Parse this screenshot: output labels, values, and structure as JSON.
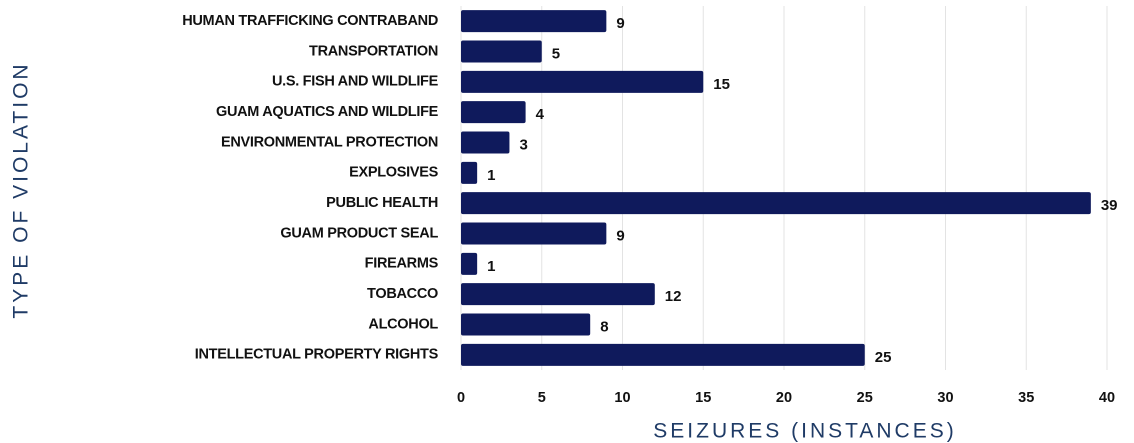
{
  "chart_data": {
    "type": "bar",
    "orientation": "horizontal",
    "xlabel": "SEIZURES (INSTANCES)",
    "ylabel": "TYPE OF VIOLATION",
    "categories": [
      "HUMAN TRAFFICKING CONTRABAND",
      "TRANSPORTATION",
      "U.S. FISH AND WILDLIFE",
      "GUAM AQUATICS AND WILDLIFE",
      "ENVIRONMENTAL PROTECTION",
      "EXPLOSIVES",
      "PUBLIC HEALTH",
      "GUAM PRODUCT SEAL",
      "FIREARMS",
      "TOBACCO",
      "ALCOHOL",
      "INTELLECTUAL PROPERTY RIGHTS"
    ],
    "values": [
      9,
      5,
      15,
      4,
      3,
      1,
      39,
      9,
      1,
      12,
      8,
      25
    ],
    "color": "#0f1a5c",
    "xlim": [
      0,
      40
    ],
    "xticks": [
      0,
      5,
      10,
      15,
      20,
      25,
      30,
      35,
      40
    ],
    "grid": true
  }
}
